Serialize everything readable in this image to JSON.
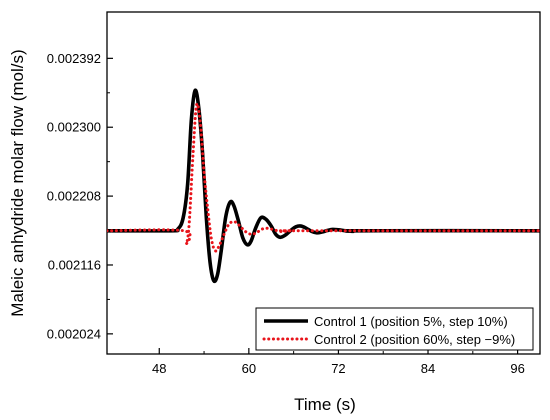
{
  "chart_data": {
    "type": "line",
    "xlabel": "Time (s)",
    "ylabel": "Maleic anhydride molar flow (mol/s)",
    "xlim": [
      41,
      99
    ],
    "ylim": [
      0.0019971,
      0.0024539
    ],
    "xticks": [
      48,
      60,
      72,
      84,
      96
    ],
    "xtick_labels": [
      "48",
      "60",
      "72",
      "84",
      "96"
    ],
    "yticks": [
      0.002024,
      0.002116,
      0.002208,
      0.0023,
      0.002392
    ],
    "ytick_labels": [
      "0.002024",
      "0.002116",
      "0.002208",
      "0.002300",
      "0.002392"
    ],
    "grid": false,
    "legend_position": "bottom-right",
    "series": [
      {
        "name": "Control 1 (position 5%, step 10%)",
        "color": "#000000",
        "style": "solid",
        "x": [
          41,
          49.5,
          50.5,
          51.2,
          51.8,
          52.3,
          52.8,
          53.3,
          53.8,
          54.3,
          54.8,
          55.3,
          55.8,
          56.3,
          56.9,
          57.5,
          58.0,
          58.6,
          59.2,
          59.8,
          60.3,
          60.9,
          61.6,
          62.3,
          63.0,
          63.6,
          64.2,
          64.9,
          65.6,
          66.3,
          67.0,
          67.7,
          68.4,
          69.1,
          69.8,
          70.5,
          71.2,
          72.0,
          73.0,
          74.0,
          75.0,
          99
        ],
        "y": [
          0.0021617,
          0.0021617,
          0.002164,
          0.002179,
          0.002224,
          0.00231,
          0.0023491,
          0.002325,
          0.002265,
          0.00218,
          0.00212,
          0.002095,
          0.002103,
          0.002135,
          0.00218,
          0.0022,
          0.002195,
          0.002175,
          0.002152,
          0.002143,
          0.002148,
          0.002165,
          0.002179,
          0.002177,
          0.002168,
          0.002157,
          0.002153,
          0.002156,
          0.002162,
          0.002167,
          0.002168,
          0.002165,
          0.002161,
          0.002159,
          0.00216,
          0.002162,
          0.0021635,
          0.002163,
          0.0021617,
          0.002161,
          0.0021617,
          0.0021617
        ]
      },
      {
        "name": "Control 2 (position 60%, step −9%)",
        "color": "#e8141b",
        "style": "dotted",
        "x": [
          41,
          51.3,
          51.6,
          52.0,
          52.5,
          53.0,
          53.5,
          54.0,
          54.5,
          55.0,
          55.5,
          56.0,
          56.6,
          57.3,
          58.0,
          58.7,
          59.5,
          60.3,
          61.0,
          61.8,
          62.6,
          63.5,
          64.5,
          65.5,
          67.0,
          99
        ],
        "y": [
          0.0021617,
          0.0021617,
          0.002144,
          0.00217,
          0.00226,
          0.0023298,
          0.002305,
          0.00224,
          0.00219,
          0.00215,
          0.002135,
          0.002141,
          0.002155,
          0.00217,
          0.002174,
          0.002169,
          0.002161,
          0.002157,
          0.002159,
          0.002164,
          0.002165,
          0.0021625,
          0.0021605,
          0.0021617,
          0.0021617,
          0.0021617
        ]
      }
    ]
  }
}
